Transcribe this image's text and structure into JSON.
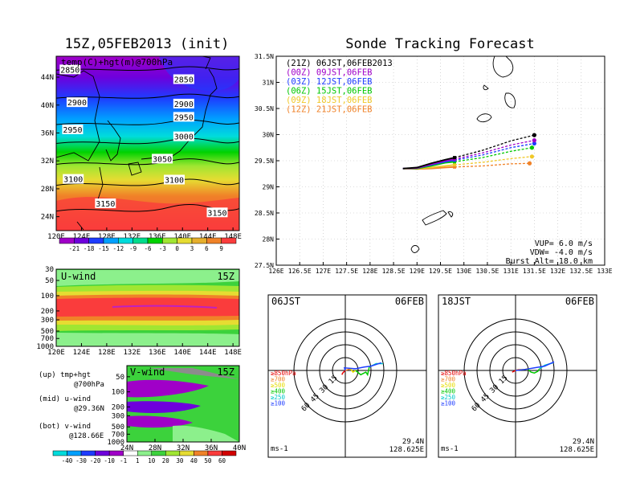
{
  "header": {
    "left_title": "15Z,05FEB2013 (init)",
    "right_title": "Sonde Tracking Forecast"
  },
  "chart_data": [
    {
      "id": "temp_map",
      "type": "heatmap",
      "panel_label": "temp(C)+hgt(m)@700hPa",
      "x_ticks": [
        "120E",
        "124E",
        "128E",
        "132E",
        "136E",
        "140E",
        "144E",
        "148E"
      ],
      "y_ticks": [
        "44N",
        "40N",
        "36N",
        "32N",
        "28N",
        "24N"
      ],
      "xlim": [
        120,
        149
      ],
      "ylim": [
        22,
        47
      ],
      "contours": [
        {
          "label": "2850",
          "lat": 45.0
        },
        {
          "label": "2900",
          "lat": 41.0
        },
        {
          "label": "2950",
          "lat": 37.2
        },
        {
          "label": "3000",
          "lat": 34.5
        },
        {
          "label": "3050",
          "lat": 31.5
        },
        {
          "label": "3100",
          "lat": 28.5
        },
        {
          "label": "3150",
          "lat": 24.8
        }
      ],
      "contour_labels": [
        {
          "text": "2850",
          "lon": 122.2,
          "lat": 45.0
        },
        {
          "text": "2850",
          "lon": 140.2,
          "lat": 43.6
        },
        {
          "text": "2900",
          "lon": 123.3,
          "lat": 40.3
        },
        {
          "text": "2900",
          "lon": 140.2,
          "lat": 40.1
        },
        {
          "text": "2950",
          "lon": 122.6,
          "lat": 36.4
        },
        {
          "text": "2950",
          "lon": 140.2,
          "lat": 38.2
        },
        {
          "text": "3000",
          "lon": 140.2,
          "lat": 35.4
        },
        {
          "text": "3050",
          "lon": 136.8,
          "lat": 32.2
        },
        {
          "text": "3100",
          "lon": 122.7,
          "lat": 29.3
        },
        {
          "text": "3100",
          "lon": 138.7,
          "lat": 29.2
        },
        {
          "text": "3150",
          "lon": 127.8,
          "lat": 25.8
        },
        {
          "text": "3150",
          "lon": 145.5,
          "lat": 24.5
        }
      ],
      "colorbar": {
        "labels": [
          "-21",
          "-18",
          "-15",
          "-12",
          "-9",
          "-6",
          "-3",
          "0",
          "3",
          "6",
          "9"
        ],
        "colors": [
          "#a000c8",
          "#6e00dc",
          "#1e3cff",
          "#00a0ff",
          "#00dcdc",
          "#00dc8c",
          "#00d200",
          "#a0e632",
          "#e6dc32",
          "#e6af2d",
          "#f08228",
          "#fa3c3c"
        ]
      }
    },
    {
      "id": "u_wind",
      "type": "heatmap",
      "panel_label": "U-wind",
      "time_label": "15Z",
      "x_ticks": [
        "120E",
        "124E",
        "128E",
        "132E",
        "136E",
        "140E",
        "144E",
        "148E"
      ],
      "y_ticks": [
        "30",
        "50",
        "100",
        "200",
        "300",
        "500",
        "700",
        "1000"
      ],
      "xlim": [
        120,
        149
      ],
      "ylim": [
        1000,
        30
      ]
    },
    {
      "id": "v_wind",
      "type": "heatmap",
      "panel_label": "V-wind",
      "time_label": "15Z",
      "x_ticks": [
        "24N",
        "28N",
        "32N",
        "36N",
        "40N"
      ],
      "y_ticks": [
        "50",
        "100",
        "200",
        "300",
        "500",
        "700",
        "1000"
      ],
      "xlim": [
        24,
        40
      ],
      "ylim": [
        1000,
        30
      ],
      "colorbar": {
        "labels": [
          "-40",
          "-30",
          "-20",
          "-10",
          "-1",
          "1",
          "10",
          "20",
          "30",
          "40",
          "50",
          "60"
        ],
        "colors": [
          "#00dcdc",
          "#00a0ff",
          "#1e3cff",
          "#6e00dc",
          "#a000c8",
          "#ffffff",
          "#8cf08c",
          "#3cd23c",
          "#a0e632",
          "#e6dc32",
          "#f08228",
          "#fa3c3c",
          "#d20000"
        ]
      }
    },
    {
      "id": "tracking",
      "type": "line",
      "x_ticks": [
        "126E",
        "126.5E",
        "127E",
        "127.5E",
        "128E",
        "128.5E",
        "129E",
        "129.5E",
        "130E",
        "130.5E",
        "131E",
        "131.5E",
        "132E",
        "132.5E",
        "133E"
      ],
      "y_ticks": [
        "31.5N",
        "31N",
        "30.5N",
        "30N",
        "29.5N",
        "29N",
        "28.5N",
        "28N",
        "27.5N"
      ],
      "xlim": [
        126,
        133
      ],
      "ylim": [
        27.5,
        31.5
      ],
      "legend_position": "top-left",
      "series": [
        {
          "name": "(21Z) 06JST,06FEB2013",
          "color": "#000000",
          "x": [
            128.7,
            129.0,
            129.3,
            129.6,
            129.8,
            130.4,
            131.0,
            131.5
          ],
          "y": [
            29.35,
            29.37,
            29.45,
            29.52,
            29.56,
            29.7,
            29.88,
            29.99
          ]
        },
        {
          "name": "(00Z) 09JST,06FEB",
          "color": "#a000c8",
          "x": [
            128.7,
            129.0,
            129.3,
            129.6,
            129.8,
            130.4,
            131.0,
            131.5
          ],
          "y": [
            29.35,
            29.36,
            29.43,
            29.5,
            29.53,
            29.65,
            29.8,
            29.89
          ]
        },
        {
          "name": "(03Z) 12JST,06FEB",
          "color": "#1e3cff",
          "x": [
            128.7,
            129.0,
            129.3,
            129.6,
            129.8,
            130.4,
            131.0,
            131.5
          ],
          "y": [
            29.35,
            29.36,
            29.42,
            29.48,
            29.51,
            29.61,
            29.75,
            29.83
          ]
        },
        {
          "name": "(06Z) 15JST,06FEB",
          "color": "#00c800",
          "x": [
            128.7,
            129.0,
            129.3,
            129.6,
            129.8,
            130.4,
            131.0,
            131.45
          ],
          "y": [
            29.35,
            29.35,
            29.4,
            29.46,
            29.48,
            29.56,
            29.68,
            29.75
          ]
        },
        {
          "name": "(09Z) 18JST,06FEB",
          "color": "#f0c828",
          "x": [
            128.7,
            129.0,
            129.3,
            129.6,
            129.8,
            130.4,
            131.0,
            131.45
          ],
          "y": [
            29.35,
            29.35,
            29.37,
            29.4,
            29.42,
            29.47,
            29.54,
            29.58
          ]
        },
        {
          "name": "(12Z) 21JST,06FEB",
          "color": "#f08228",
          "x": [
            128.7,
            129.0,
            129.3,
            129.6,
            129.8,
            130.4,
            131.0,
            131.4
          ],
          "y": [
            29.35,
            29.34,
            29.35,
            29.37,
            29.38,
            29.4,
            29.44,
            29.45
          ]
        }
      ],
      "params": {
        "vup": "VUP= 6.0 m/s",
        "vdw": "VDW= -4.0 m/s",
        "burst": "Burst Alt= 18.0 km"
      }
    },
    {
      "id": "hodo_06",
      "type": "line",
      "time_label": "06JST",
      "date_label": "06FEB",
      "ring_labels": [
        "15",
        "30",
        "45",
        "60"
      ],
      "unit": "ms-1",
      "location_lat": "29.4N",
      "location_lon": "128.625E",
      "level_legend": [
        {
          "text": "≥850hPa",
          "color": "#e60000"
        },
        {
          "text": "≥700",
          "color": "#f08228"
        },
        {
          "text": "≥500",
          "color": "#e6dc00"
        },
        {
          "text": "≥400",
          "color": "#00c800"
        },
        {
          "text": "≥250",
          "color": "#00c8c8"
        },
        {
          "text": "≥100",
          "color": "#1e3cff"
        }
      ],
      "series": [
        {
          "level": "850",
          "color": "#e60000",
          "u": [
            -4,
            -3,
            0
          ],
          "v": [
            -5,
            -3,
            0
          ]
        },
        {
          "level": "700",
          "color": "#f08228",
          "u": [
            0,
            3,
            6
          ],
          "v": [
            0,
            1,
            2
          ]
        },
        {
          "level": "500",
          "color": "#e6dc00",
          "u": [
            6,
            9,
            12
          ],
          "v": [
            2,
            -2,
            0
          ]
        },
        {
          "level": "400",
          "color": "#00c800",
          "u": [
            12,
            18,
            24,
            26,
            28
          ],
          "v": [
            0,
            -5,
            -2,
            -5,
            4
          ]
        },
        {
          "level": "250",
          "color": "#00c8c8",
          "u": [
            28,
            36,
            44
          ],
          "v": [
            4,
            8,
            8
          ]
        },
        {
          "level": "100",
          "color": "#1e3cff",
          "u": [
            0,
            -1,
            12,
            22,
            30,
            42
          ],
          "v": [
            0,
            3,
            2,
            4,
            5,
            9
          ]
        }
      ]
    },
    {
      "id": "hodo_18",
      "type": "line",
      "time_label": "18JST",
      "date_label": "06FEB",
      "ring_labels": [
        "15",
        "30",
        "45",
        "60"
      ],
      "unit": "ms-1",
      "location_lat": "29.4N",
      "location_lon": "128.625E",
      "level_legend": [
        {
          "text": "≥850hPa",
          "color": "#e60000"
        },
        {
          "text": "≥700",
          "color": "#f08228"
        },
        {
          "text": "≥500",
          "color": "#e6dc00"
        },
        {
          "text": "≥400",
          "color": "#00c800"
        },
        {
          "text": "≥250",
          "color": "#00c8c8"
        },
        {
          "text": "≥100",
          "color": "#1e3cff"
        }
      ],
      "series": [
        {
          "level": "850",
          "color": "#e60000",
          "u": [
            -4,
            -2,
            0
          ],
          "v": [
            -2,
            -1,
            0
          ]
        },
        {
          "level": "700",
          "color": "#f08228",
          "u": [
            0,
            3,
            6
          ],
          "v": [
            0,
            1,
            1
          ]
        },
        {
          "level": "500",
          "color": "#e6dc00",
          "u": [
            6,
            10,
            14
          ],
          "v": [
            1,
            1,
            2
          ]
        },
        {
          "level": "400",
          "color": "#00c800",
          "u": [
            14,
            18,
            22,
            26,
            28
          ],
          "v": [
            2,
            -2,
            -3,
            -1,
            2
          ]
        },
        {
          "level": "250",
          "color": "#00c8c8",
          "u": [
            28,
            34,
            44
          ],
          "v": [
            2,
            6,
            9
          ]
        },
        {
          "level": "100",
          "color": "#1e3cff",
          "u": [
            0,
            10,
            22,
            34,
            45
          ],
          "v": [
            0,
            1,
            3,
            5,
            10
          ]
        }
      ]
    }
  ],
  "side_legend": {
    "up_1": "(up) tmp+hgt",
    "up_2": "@700hPa",
    "mid_1": "(mid) u-wind",
    "mid_2": "@29.36N",
    "bot_1": "(bot) v-wind",
    "bot_2": "@128.66E"
  }
}
